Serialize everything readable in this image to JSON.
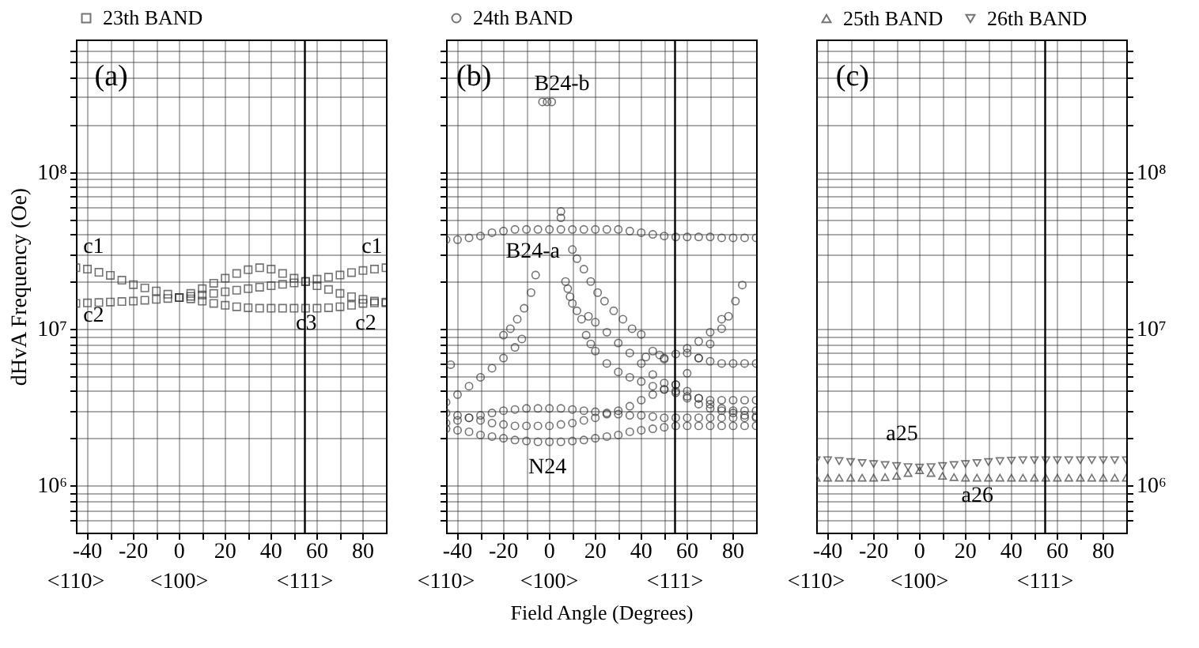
{
  "chart_data": [
    {
      "type": "scatter",
      "ylabel": "dHvA Frequency (Oe)",
      "log": "y",
      "grid": true,
      "legend": "top",
      "xlim": [
        -45,
        90
      ],
      "ylim": [
        500000,
        700000000
      ],
      "xticks": [
        {
          "value": -40,
          "label": "-40"
        },
        {
          "value": -30,
          "label": null
        },
        {
          "value": -20,
          "label": "-20"
        },
        {
          "value": -10,
          "label": null
        },
        0,
        {
          "value": 10,
          "label": null
        },
        20,
        {
          "value": 30,
          "label": null
        },
        40,
        {
          "value": 50,
          "label": null
        },
        60,
        {
          "value": 70,
          "label": null
        },
        80
      ],
      "yticks": [
        {
          "value": 600000,
          "label": null
        },
        {
          "value": 700000,
          "label": null
        },
        {
          "value": 800000,
          "label": null
        },
        {
          "value": 900000,
          "label": null
        },
        {
          "value": 1000000,
          "label": "10⁶"
        },
        {
          "value": 2000000,
          "label": null
        },
        {
          "value": 3000000,
          "label": null
        },
        {
          "value": 4000000,
          "label": null
        },
        {
          "value": 5000000,
          "label": null
        },
        {
          "value": 6000000,
          "label": null
        },
        {
          "value": 7000000,
          "label": null
        },
        {
          "value": 8000000,
          "label": null
        },
        {
          "value": 9000000,
          "label": null
        },
        {
          "value": 10000000,
          "label": "10⁷"
        },
        {
          "value": 20000000,
          "label": null
        },
        {
          "value": 30000000,
          "label": null
        },
        {
          "value": 40000000,
          "label": null
        },
        {
          "value": 50000000,
          "label": null
        },
        {
          "value": 60000000,
          "label": null
        },
        {
          "value": 70000000,
          "label": null
        },
        {
          "value": 80000000,
          "label": null
        },
        {
          "value": 90000000,
          "label": null
        },
        {
          "value": 100000000,
          "label": "10⁸"
        },
        {
          "value": 200000000,
          "label": null
        },
        {
          "value": 300000000,
          "label": null
        },
        {
          "value": 400000000,
          "label": null
        },
        {
          "value": 500000000,
          "label": null
        },
        {
          "value": 600000000,
          "label": null
        }
      ],
      "ref_lines": [
        {
          "axis": "x",
          "value": 54.7,
          "color": "#000000"
        }
      ],
      "annotations": [
        "(a)",
        "c1",
        "c2",
        "c1",
        "c3",
        "c2",
        "<110>",
        "<100>",
        "<111>"
      ],
      "series": [
        {
          "name": "23th BAND",
          "color": "#3a3a3a",
          "marker": "square",
          "x": [
            -45,
            -40,
            -35,
            -30,
            -25,
            -20,
            -15,
            -10,
            -5,
            0,
            5,
            10,
            15,
            20,
            25,
            30,
            35,
            40,
            45,
            50,
            55,
            60,
            65,
            70,
            75,
            80,
            85,
            90,
            -45,
            -40,
            -35,
            -30,
            -25,
            -20,
            -15,
            -10,
            -5,
            0,
            5,
            10,
            15,
            20,
            25,
            30,
            35,
            40,
            45,
            50,
            55,
            60,
            65,
            70,
            75,
            80,
            85,
            90,
            0,
            5,
            10,
            15,
            20,
            25,
            30,
            35,
            40,
            45,
            50,
            55,
            60,
            65,
            70,
            75,
            80,
            85,
            90
          ],
          "values": [
            24500000.0,
            24000000.0,
            22900000.0,
            21900000.0,
            20400000.0,
            19100000.0,
            18200000.0,
            17400000.0,
            16600000.0,
            15800000.0,
            15500000.0,
            15000000.0,
            14500000.0,
            14100000.0,
            13800000.0,
            13600000.0,
            13500000.0,
            13500000.0,
            13500000.0,
            13500000.0,
            13500000.0,
            13500000.0,
            13600000.0,
            13800000.0,
            14100000.0,
            14500000.0,
            14600000.0,
            14800000.0,
            14500000.0,
            14600000.0,
            14700000.0,
            14800000.0,
            14900000.0,
            15000000.0,
            15200000.0,
            15400000.0,
            15600000.0,
            15800000.0,
            16100000.0,
            16400000.0,
            16800000.0,
            17200000.0,
            17600000.0,
            18000000.0,
            18400000.0,
            18800000.0,
            19200000.0,
            19600000.0,
            20000000.0,
            20700000.0,
            21300000.0,
            22000000.0,
            22800000.0,
            23500000.0,
            24000000.0,
            24500000.0,
            15800000.0,
            16800000.0,
            18000000.0,
            19500000.0,
            21000000.0,
            22500000.0,
            23800000.0,
            24500000.0,
            24000000.0,
            22500000.0,
            21000000.0,
            20000000.0,
            18800000.0,
            17800000.0,
            16800000.0,
            16000000.0,
            15400000.0,
            15000000.0,
            14600000.0
          ]
        }
      ]
    },
    {
      "type": "scatter",
      "xlabel": "Field Angle (Degrees)",
      "log": "y",
      "grid": true,
      "legend": "top",
      "tick_labels": "x",
      "xlim": [
        -45,
        90
      ],
      "ylim": [
        500000,
        700000000
      ],
      "xticks": [
        {
          "value": -40,
          "label": "-40"
        },
        {
          "value": -30,
          "label": null
        },
        {
          "value": -20,
          "label": "-20"
        },
        {
          "value": -10,
          "label": null
        },
        0,
        {
          "value": 10,
          "label": null
        },
        20,
        {
          "value": 30,
          "label": null
        },
        40,
        {
          "value": 50,
          "label": null
        },
        60,
        {
          "value": 70,
          "label": null
        },
        80
      ],
      "yticks": [
        {
          "value": 600000,
          "label": null
        },
        {
          "value": 700000,
          "label": null
        },
        {
          "value": 800000,
          "label": null
        },
        {
          "value": 900000,
          "label": null
        },
        {
          "value": 1000000,
          "label": null
        },
        {
          "value": 2000000,
          "label": null
        },
        {
          "value": 3000000,
          "label": null
        },
        {
          "value": 4000000,
          "label": null
        },
        {
          "value": 5000000,
          "label": null
        },
        {
          "value": 6000000,
          "label": null
        },
        {
          "value": 7000000,
          "label": null
        },
        {
          "value": 8000000,
          "label": null
        },
        {
          "value": 9000000,
          "label": null
        },
        {
          "value": 10000000,
          "label": null
        },
        {
          "value": 20000000,
          "label": null
        },
        {
          "value": 30000000,
          "label": null
        },
        {
          "value": 40000000,
          "label": null
        },
        {
          "value": 50000000,
          "label": null
        },
        {
          "value": 60000000,
          "label": null
        },
        {
          "value": 70000000,
          "label": null
        },
        {
          "value": 80000000,
          "label": null
        },
        {
          "value": 90000000,
          "label": null
        },
        {
          "value": 100000000,
          "label": null
        },
        {
          "value": 200000000,
          "label": null
        },
        {
          "value": 300000000,
          "label": null
        },
        {
          "value": 400000000,
          "label": null
        },
        {
          "value": 500000000,
          "label": null
        },
        {
          "value": 600000000,
          "label": null
        }
      ],
      "ref_lines": [
        {
          "axis": "x",
          "value": 54.7,
          "color": "#000000"
        }
      ],
      "annotations": [
        "(b)",
        "B24-b",
        "B24-a",
        "N24",
        "<110>",
        "<100>",
        "<111>"
      ],
      "series": [
        {
          "name": "24th BAND",
          "color": "#3a3a3a",
          "marker": "circle",
          "x": [
            -45,
            -40,
            -35,
            -30,
            -25,
            -20,
            -15,
            -10,
            -5,
            0,
            5,
            10,
            15,
            20,
            25,
            30,
            35,
            40,
            45,
            50,
            55,
            60,
            65,
            70,
            75,
            80,
            85,
            90,
            -3,
            -1,
            1,
            5,
            5,
            10,
            12,
            15,
            18,
            21,
            24,
            28,
            32,
            36,
            40,
            7,
            8,
            9,
            10,
            12,
            14,
            16,
            18,
            20,
            25,
            30,
            35,
            40,
            45,
            50,
            55,
            60,
            65,
            70,
            75,
            80,
            85,
            90,
            17,
            20,
            25,
            30,
            35,
            40,
            45,
            50,
            55,
            60,
            65,
            70,
            75,
            80,
            85,
            90,
            42,
            45,
            48,
            50,
            60,
            65,
            70,
            75,
            80,
            85,
            90,
            55,
            60,
            65,
            70,
            75,
            78,
            81,
            84,
            50,
            55,
            60,
            65,
            70,
            75,
            -45,
            -40,
            -35,
            -30,
            -25,
            -20,
            -15,
            -12,
            -20,
            -17,
            -14,
            -11,
            -8,
            -6,
            -43,
            -45,
            -40,
            -35,
            -30,
            -25,
            -20,
            -15,
            -10,
            -5,
            0,
            5,
            10,
            15,
            20,
            25,
            30,
            35,
            40,
            45,
            50,
            55,
            60,
            65,
            70,
            75,
            80,
            85,
            90,
            -45,
            -40,
            -35,
            -30,
            -25,
            -20,
            -15,
            -10,
            -5,
            0,
            5,
            10,
            15,
            20,
            25,
            30,
            35,
            40,
            45,
            50,
            55,
            60,
            65,
            70,
            75,
            80,
            85,
            90,
            -45,
            -40,
            -35,
            -30,
            -25,
            -20,
            -15,
            -10,
            -5,
            0,
            5,
            10,
            15,
            20,
            25,
            30,
            35,
            40,
            45,
            50,
            55,
            60,
            65,
            70,
            75,
            80,
            85,
            90
          ],
          "values": [
            37000000.0,
            37000000.0,
            38000000.0,
            39000000.0,
            41000000.0,
            42000000.0,
            43000000.0,
            43000000.0,
            43000000.0,
            43000000.0,
            43000000.0,
            43000000.0,
            43000000.0,
            43000000.0,
            43000000.0,
            43000000.0,
            42000000.0,
            41000000.0,
            40000000.0,
            39000000.0,
            38500000.0,
            38500000.0,
            38500000.0,
            38500000.0,
            38000000.0,
            38000000.0,
            38000000.0,
            38000000.0,
            280000000.0,
            280000000.0,
            280000000.0,
            56000000.0,
            51000000.0,
            32000000.0,
            28000000.0,
            24000000.0,
            20000000.0,
            17000000.0,
            15000000.0,
            13000000.0,
            11500000.0,
            10000000.0,
            9200000.0,
            20000000.0,
            18000000.0,
            16000000.0,
            14500000.0,
            13000000.0,
            11500000.0,
            9100000.0,
            8000000.0,
            7200000.0,
            6000000.0,
            5300000.0,
            4900000.0,
            4600000.0,
            4300000.0,
            4100000.0,
            3900000.0,
            3700000.0,
            3600000.0,
            3500000.0,
            3500000.0,
            3500000.0,
            3500000.0,
            3500000.0,
            12000000.0,
            11000000.0,
            9500000.0,
            8100000.0,
            7000000.0,
            6000000.0,
            5100000.0,
            4500000.0,
            4000000.0,
            3600000.0,
            3300000.0,
            3100000.0,
            3000000.0,
            2900000.0,
            2800000.0,
            2750000.0,
            6600000.0,
            7200000.0,
            6800000.0,
            6400000.0,
            7000000.0,
            6500000.0,
            6200000.0,
            6000000.0,
            6000000.0,
            6000000.0,
            6000000.0,
            4400000.0,
            5200000.0,
            6500000.0,
            8000000.0,
            10000000.0,
            12000000.0,
            15000000.0,
            19000000.0,
            6500000.0,
            6900000.0,
            7500000.0,
            8300000.0,
            9500000.0,
            11500000.0,
            3400000.0,
            3800000.0,
            4300000.0,
            4900000.0,
            5600000.0,
            6500000.0,
            7600000.0,
            8600000.0,
            9100000.0,
            10000000.0,
            11500000.0,
            13500000.0,
            17000000.0,
            22000000.0,
            5900000.0,
            2500000.0,
            2600000.0,
            2700000.0,
            2800000.0,
            2900000.0,
            3000000.0,
            3050000.0,
            3100000.0,
            3100000.0,
            3100000.0,
            3100000.0,
            3050000.0,
            3000000.0,
            2950000.0,
            2900000.0,
            2850000.0,
            2800000.0,
            2800000.0,
            2750000.0,
            2700000.0,
            2700000.0,
            2700000.0,
            2700000.0,
            2700000.0,
            2700000.0,
            2700000.0,
            2700000.0,
            2700000.0,
            2300000.0,
            2250000.0,
            2200000.0,
            2100000.0,
            2050000.0,
            2000000.0,
            1950000.0,
            1920000.0,
            1900000.0,
            1900000.0,
            1900000.0,
            1920000.0,
            1950000.0,
            2000000.0,
            2050000.0,
            2100000.0,
            2200000.0,
            2250000.0,
            2300000.0,
            2350000.0,
            2400000.0,
            2400000.0,
            2400000.0,
            2400000.0,
            2400000.0,
            2400000.0,
            2400000.0,
            2400000.0,
            2900000.0,
            2800000.0,
            2700000.0,
            2600000.0,
            2500000.0,
            2450000.0,
            2400000.0,
            2400000.0,
            2400000.0,
            2400000.0,
            2450000.0,
            2500000.0,
            2600000.0,
            2700000.0,
            2850000.0,
            3000000.0,
            3200000.0,
            3500000.0,
            3800000.0,
            4100000.0,
            4400000.0,
            4000000.0,
            3600000.0,
            3300000.0,
            3100000.0,
            3000000.0,
            3000000.0,
            3000000.0
          ]
        }
      ]
    },
    {
      "type": "scatter",
      "log": "y2",
      "grid": true,
      "legend": "top",
      "xlim": [
        -45,
        90
      ],
      "y2lim": [
        500000,
        700000000
      ],
      "xticks": [
        {
          "value": -40,
          "label": "-40"
        },
        {
          "value": -30,
          "label": null
        },
        {
          "value": -20,
          "label": "-20"
        },
        {
          "value": -10,
          "label": null
        },
        0,
        {
          "value": 10,
          "label": null
        },
        20,
        {
          "value": 30,
          "label": null
        },
        40,
        {
          "value": 50,
          "label": null
        },
        60,
        {
          "value": 70,
          "label": null
        },
        80
      ],
      "y2ticks": [
        {
          "value": 600000,
          "label": null
        },
        {
          "value": 700000,
          "label": null
        },
        {
          "value": 800000,
          "label": null
        },
        {
          "value": 900000,
          "label": null
        },
        {
          "value": 1000000,
          "label": "10⁶"
        },
        {
          "value": 2000000,
          "label": null
        },
        {
          "value": 3000000,
          "label": null
        },
        {
          "value": 4000000,
          "label": null
        },
        {
          "value": 5000000,
          "label": null
        },
        {
          "value": 6000000,
          "label": null
        },
        {
          "value": 7000000,
          "label": null
        },
        {
          "value": 8000000,
          "label": null
        },
        {
          "value": 9000000,
          "label": null
        },
        {
          "value": 10000000,
          "label": "10⁷"
        },
        {
          "value": 20000000,
          "label": null
        },
        {
          "value": 30000000,
          "label": null
        },
        {
          "value": 40000000,
          "label": null
        },
        {
          "value": 50000000,
          "label": null
        },
        {
          "value": 60000000,
          "label": null
        },
        {
          "value": 70000000,
          "label": null
        },
        {
          "value": 80000000,
          "label": null
        },
        {
          "value": 90000000,
          "label": null
        },
        {
          "value": 100000000,
          "label": "10⁸"
        },
        {
          "value": 200000000,
          "label": null
        },
        {
          "value": 300000000,
          "label": null
        },
        {
          "value": 400000000,
          "label": null
        },
        {
          "value": 500000000,
          "label": null
        },
        {
          "value": 600000000,
          "label": null
        }
      ],
      "ref_lines": [
        {
          "axis": "x",
          "value": 54.7,
          "color": "#000000"
        }
      ],
      "annotations": [
        "(c)",
        "a25",
        "a26",
        "<110>",
        "<100>",
        "<111>"
      ],
      "series": [
        {
          "name": "25th BAND",
          "color": "#3a3a3a",
          "marker": "triangle",
          "axis": "y2",
          "x": [
            -45,
            -40,
            -35,
            -30,
            -25,
            -20,
            -15,
            -10,
            -5,
            0,
            5,
            10,
            15,
            20,
            25,
            30,
            35,
            40,
            45,
            50,
            55,
            60,
            65,
            70,
            75,
            80,
            85,
            90
          ],
          "values": [
            1120000.0,
            1120000.0,
            1120000.0,
            1120000.0,
            1120000.0,
            1120000.0,
            1130000.0,
            1150000.0,
            1200000.0,
            1250000.0,
            1200000.0,
            1150000.0,
            1130000.0,
            1120000.0,
            1120000.0,
            1120000.0,
            1120000.0,
            1120000.0,
            1120000.0,
            1120000.0,
            1120000.0,
            1120000.0,
            1120000.0,
            1120000.0,
            1120000.0,
            1120000.0,
            1120000.0,
            1120000.0
          ]
        },
        {
          "name": "26th BAND",
          "color": "#3a3a3a",
          "marker": "triangle-down",
          "axis": "y2",
          "x": [
            -45,
            -40,
            -35,
            -30,
            -25,
            -20,
            -15,
            -10,
            -5,
            0,
            5,
            10,
            15,
            20,
            25,
            30,
            35,
            40,
            45,
            50,
            55,
            60,
            65,
            70,
            75,
            80,
            85,
            90
          ],
          "values": [
            1450000.0,
            1450000.0,
            1430000.0,
            1410000.0,
            1390000.0,
            1370000.0,
            1350000.0,
            1330000.0,
            1310000.0,
            1300000.0,
            1310000.0,
            1330000.0,
            1350000.0,
            1370000.0,
            1390000.0,
            1410000.0,
            1430000.0,
            1440000.0,
            1450000.0,
            1450000.0,
            1450000.0,
            1450000.0,
            1450000.0,
            1450000.0,
            1450000.0,
            1450000.0,
            1450000.0,
            1450000.0
          ]
        }
      ]
    }
  ]
}
